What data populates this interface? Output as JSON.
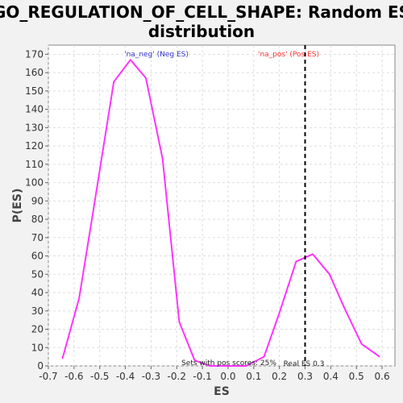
{
  "chart_data": {
    "type": "line",
    "title_line1": "GO_REGULATION_OF_CELL_SHAPE: Random ES",
    "title_line2": "distribution",
    "xlabel": "ES",
    "ylabel": "P(ES)",
    "xlim": [
      -0.7,
      0.65
    ],
    "ylim": [
      0,
      175
    ],
    "xticks": [
      -0.7,
      -0.6,
      -0.5,
      -0.4,
      -0.3,
      -0.2,
      -0.1,
      0.0,
      0.1,
      0.2,
      0.3,
      0.4,
      0.5,
      0.6
    ],
    "xtick_labels": [
      "-0.7",
      "-0.6",
      "-0.5",
      "-0.4",
      "-0.3",
      "-0.2",
      "-0.1",
      "0.0",
      "0.1",
      "0.2",
      "0.3",
      "0.4",
      "0.5",
      "0.6"
    ],
    "yticks": [
      0,
      10,
      20,
      30,
      40,
      50,
      60,
      70,
      80,
      90,
      100,
      110,
      120,
      130,
      140,
      150,
      160,
      170
    ],
    "grid": true,
    "series": [
      {
        "color": "#ff33ff",
        "x": [
          -0.645,
          -0.58,
          -0.52,
          -0.445,
          -0.38,
          -0.32,
          -0.255,
          -0.19,
          -0.13,
          -0.07,
          0.01,
          0.07,
          0.14,
          0.2,
          0.265,
          0.33,
          0.395,
          0.455,
          0.52,
          0.59
        ],
        "y": [
          4,
          37,
          89,
          155,
          167,
          157,
          113,
          24,
          3,
          0,
          0,
          0,
          5,
          29,
          57,
          61,
          50,
          31,
          12,
          5
        ]
      }
    ],
    "vline": {
      "x": 0.3,
      "style": "dashed",
      "color": "#000000"
    },
    "annotations": {
      "neg_label": "'na_neg' (Neg ES)",
      "neg_color": "#3333cc",
      "pos_label": "'na_pos' (Pos ES)",
      "pos_color": "#ff3333",
      "pos_scores_note": "Sets with pos scores: 25%",
      "real_es_note": "Real ES 0.3"
    }
  }
}
